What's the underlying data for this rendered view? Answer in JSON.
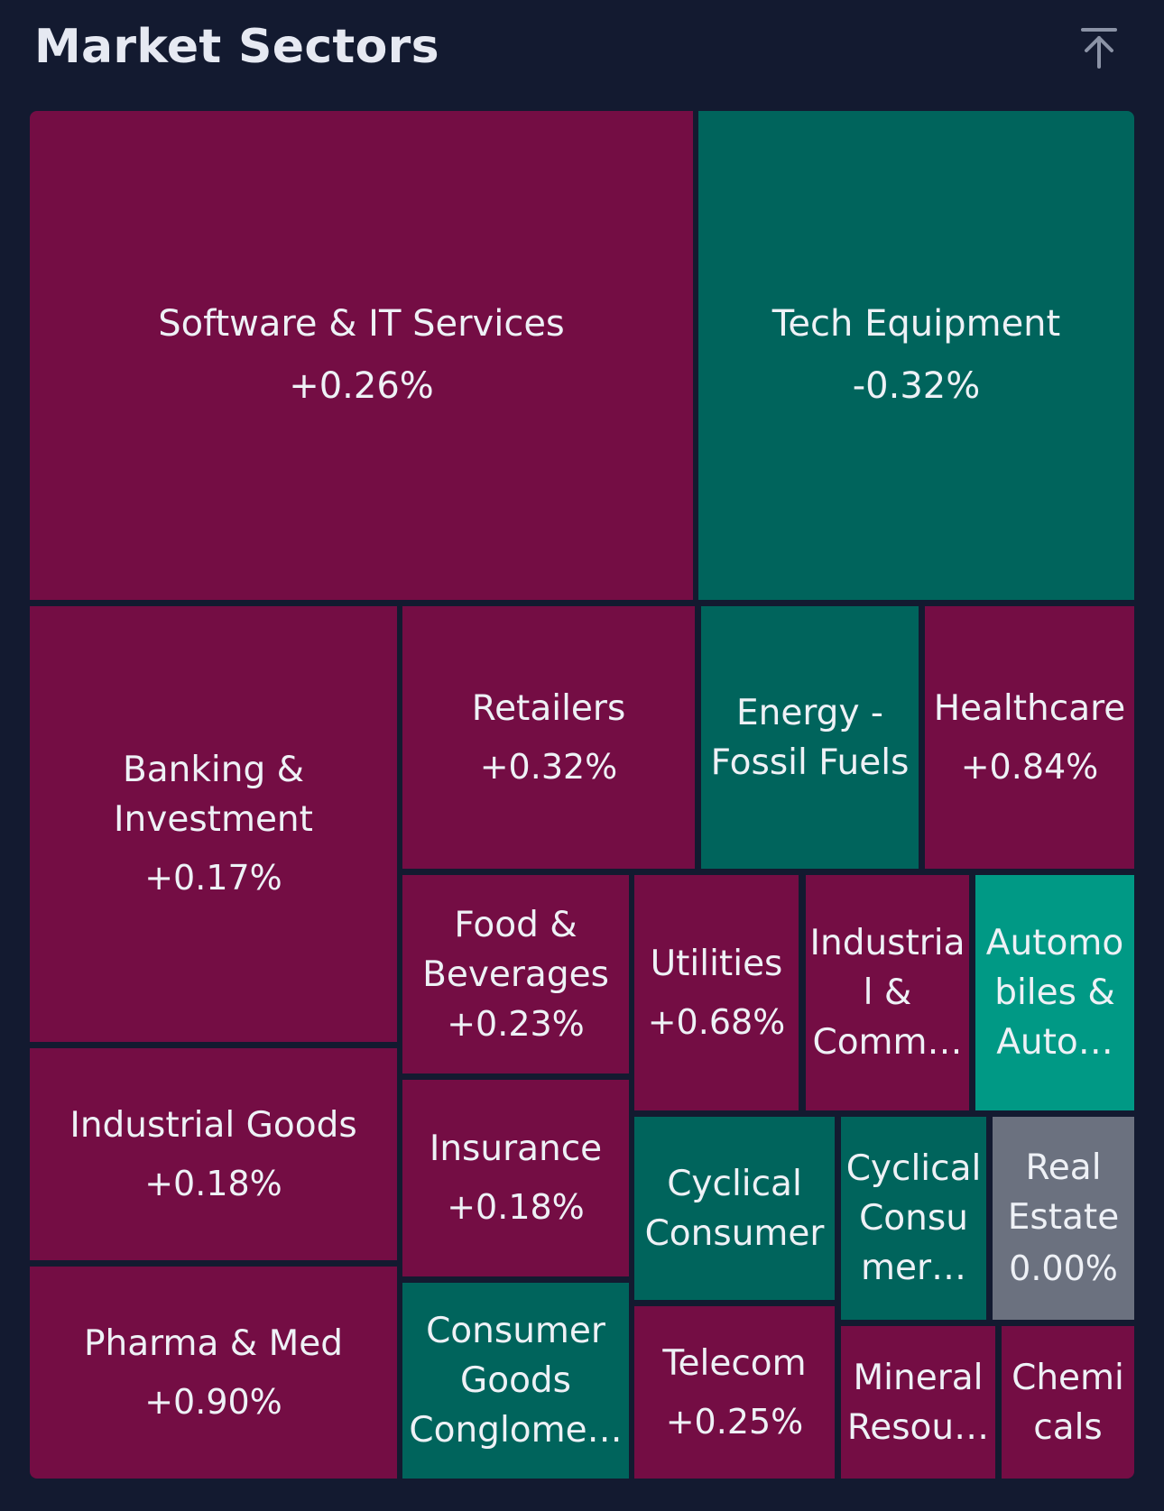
{
  "header": {
    "title": "Market Sectors",
    "scroll_top_icon": "arrow-up-to-line-icon"
  },
  "colors": {
    "background": "#131a30",
    "positive": "#740d44",
    "negative": "#00645c",
    "strong_negative": "#009985",
    "neutral": "#6b717f",
    "text": "#eef1f6"
  },
  "sectors": {
    "software": {
      "name": "Software & IT Services",
      "change": "+0.26%"
    },
    "tech_equipment": {
      "name": "Tech Equipment",
      "change": "-0.32%"
    },
    "banking": {
      "name": "Banking &\nInvestment",
      "change": "+0.17%"
    },
    "retailers": {
      "name": "Retailers",
      "change": "+0.32%"
    },
    "energy": {
      "name": "Energy -\nFossil Fuels",
      "change": ""
    },
    "healthcare": {
      "name": "Healthcare",
      "change": "+0.84%"
    },
    "food": {
      "name": "Food &\nBeverages",
      "change": "+0.23%"
    },
    "utilities": {
      "name": "Utilities",
      "change": "+0.68%"
    },
    "industrial_comm": {
      "name": "Industria\nl &\nComm…",
      "change": ""
    },
    "automobiles": {
      "name": "Automo\nbiles &\nAuto…",
      "change": ""
    },
    "industrial_goods": {
      "name": "Industrial Goods",
      "change": "+0.18%"
    },
    "insurance": {
      "name": "Insurance",
      "change": "+0.18%"
    },
    "cyclical_consumer": {
      "name": "Cyclical\nConsumer",
      "change": ""
    },
    "cyclical_consumer_2": {
      "name": "Cyclical\nConsu\nmer…",
      "change": ""
    },
    "real_estate": {
      "name": "Real\nEstate",
      "change": "0.00%"
    },
    "pharma": {
      "name": "Pharma & Med",
      "change": "+0.90%"
    },
    "consumer_goods": {
      "name": "Consumer\nGoods\nConglome…",
      "change": ""
    },
    "telecom": {
      "name": "Telecom",
      "change": "+0.25%"
    },
    "mineral": {
      "name": "Mineral\nResou…",
      "change": ""
    },
    "chemicals": {
      "name": "Chemi\ncals",
      "change": ""
    }
  }
}
